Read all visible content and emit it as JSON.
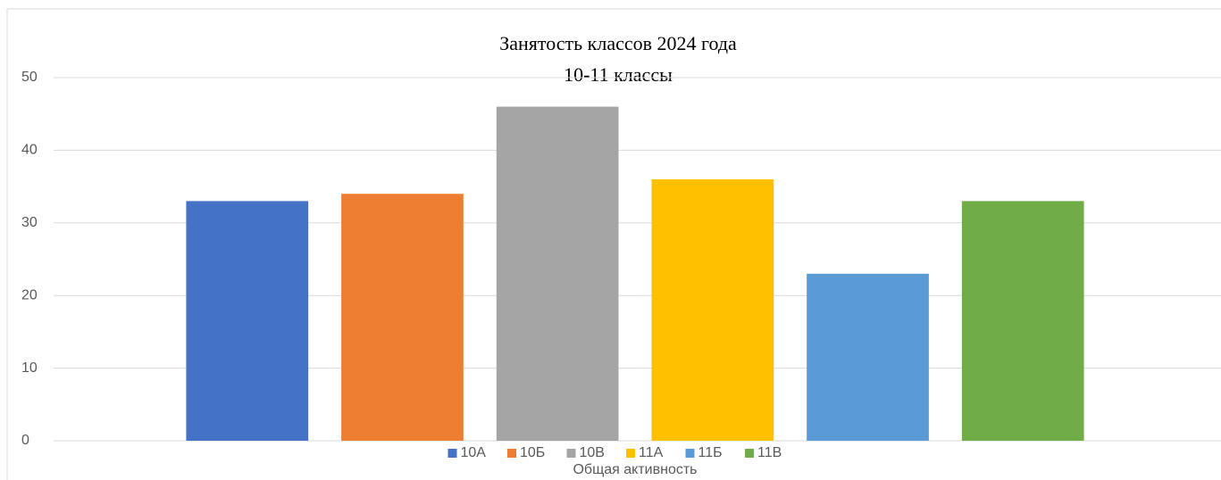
{
  "chart_data": {
    "type": "bar",
    "title": "Занятость классов 2024 года",
    "subtitle": "10-11 классы",
    "categories": [
      "Общая активность"
    ],
    "series": [
      {
        "name": "10А",
        "color": "#4472c4",
        "values": [
          33
        ]
      },
      {
        "name": "10Б",
        "color": "#ed7d31",
        "values": [
          34
        ]
      },
      {
        "name": "10В",
        "color": "#a5a5a5",
        "values": [
          46
        ]
      },
      {
        "name": "11А",
        "color": "#ffc000",
        "values": [
          36
        ]
      },
      {
        "name": "11Б",
        "color": "#5b9bd5",
        "values": [
          23
        ]
      },
      {
        "name": "11В",
        "color": "#70ad47",
        "values": [
          33
        ]
      }
    ],
    "ylim": [
      0,
      50
    ],
    "yticks": [
      0,
      10,
      20,
      30,
      40,
      50
    ],
    "grid": true,
    "legend": "bottom"
  }
}
